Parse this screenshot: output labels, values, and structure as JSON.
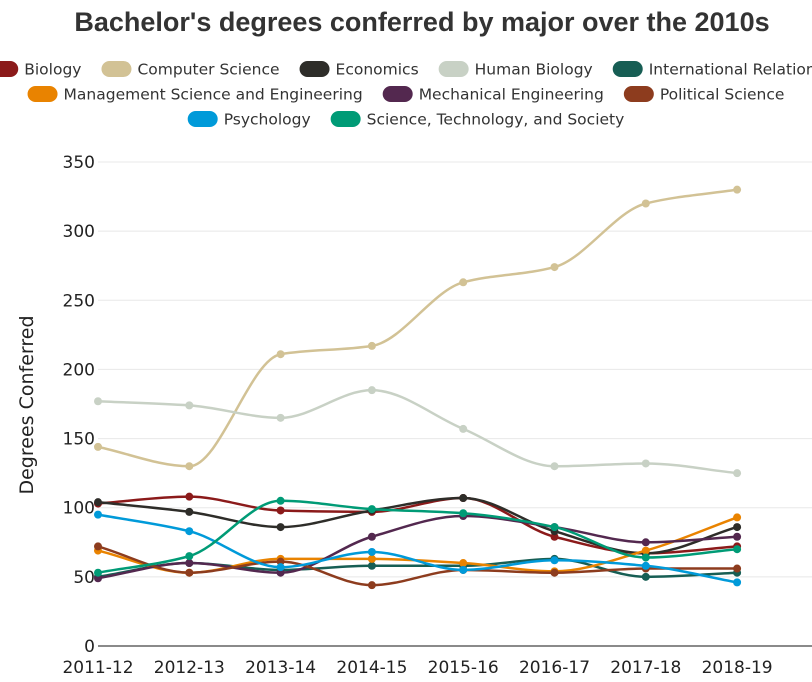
{
  "chart_data": {
    "type": "line",
    "title": "Bachelor's degrees conferred by major over the 2010s",
    "ylabel": "Degrees Conferred",
    "xlabel": "",
    "ylim": [
      0,
      350
    ],
    "yticks": [
      0,
      50,
      100,
      150,
      200,
      250,
      300,
      350
    ],
    "grid": true,
    "legend_position": "top",
    "categories": [
      "2011-12",
      "2012-13",
      "2013-14",
      "2014-15",
      "2015-16",
      "2016-17",
      "2017-18",
      "2018-19"
    ],
    "series": [
      {
        "name": "Biology",
        "color": "#8b1a1a",
        "values": [
          103,
          108,
          98,
          97,
          107,
          79,
          67,
          72
        ]
      },
      {
        "name": "Computer Science",
        "color": "#d2c295",
        "values": [
          144,
          130,
          211,
          217,
          263,
          274,
          320,
          330
        ]
      },
      {
        "name": "Economics",
        "color": "#2e2d29",
        "values": [
          104,
          97,
          86,
          98,
          107,
          83,
          67,
          86
        ]
      },
      {
        "name": "Human Biology",
        "color": "#c8d1c5",
        "values": [
          177,
          174,
          165,
          185,
          157,
          130,
          132,
          125
        ]
      },
      {
        "name": "International Relations",
        "color": "#175e54",
        "values": [
          50,
          60,
          55,
          58,
          58,
          63,
          50,
          53
        ]
      },
      {
        "name": "Management Science and Engineering",
        "color": "#e98300",
        "values": [
          69,
          53,
          63,
          63,
          60,
          54,
          69,
          93
        ]
      },
      {
        "name": "Mechanical Engineering",
        "color": "#53284f",
        "values": [
          49,
          60,
          53,
          79,
          94,
          86,
          75,
          79
        ]
      },
      {
        "name": "Political Science",
        "color": "#8d3c1e",
        "values": [
          72,
          53,
          61,
          44,
          55,
          53,
          56,
          56
        ]
      },
      {
        "name": "Psychology",
        "color": "#009ad9",
        "values": [
          95,
          83,
          57,
          68,
          55,
          62,
          58,
          46
        ]
      },
      {
        "name": "Science, Technology, and Society",
        "color": "#009b76",
        "values": [
          53,
          65,
          105,
          99,
          96,
          86,
          64,
          70
        ]
      }
    ]
  }
}
